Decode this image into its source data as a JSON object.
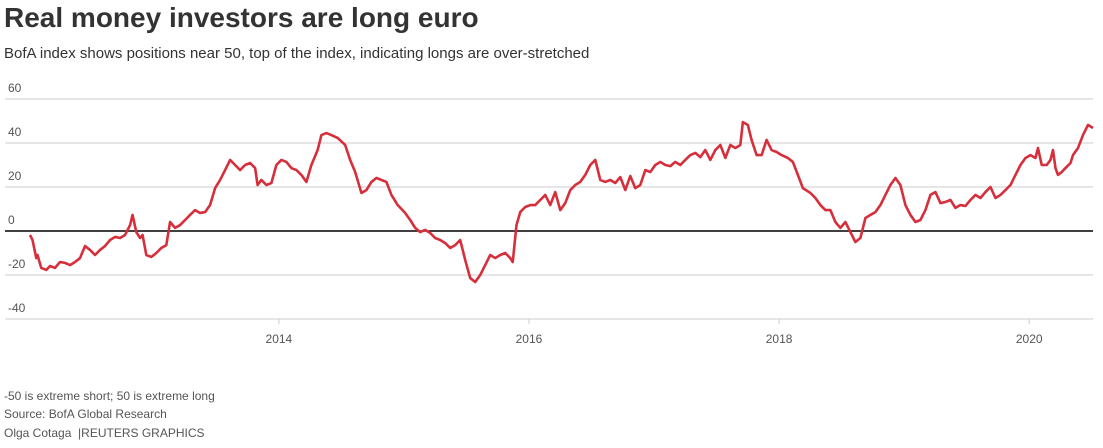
{
  "chart_data": {
    "type": "line",
    "title": "Real money investors are long euro",
    "subtitle": "BofA index shows positions near 50, top of the index, indicating longs are over-stretched",
    "footnote": "-50 is extreme short; 50 is extreme long",
    "source": "Source: BofA Global Research",
    "credit": "Olga Cotaga  |REUTERS GRAPHICS",
    "color": "#d62f3b",
    "grid": true,
    "xlim": [
      2011.81,
      2020.51
    ],
    "xticks": [
      2014,
      2016,
      2018,
      2020
    ],
    "ylim": [
      -40,
      60
    ],
    "yticks": [
      60,
      40,
      20,
      0,
      -20,
      -40
    ],
    "x": [
      2012.01,
      2012.03,
      2012.06,
      2012.07,
      2012.1,
      2012.14,
      2012.17,
      2012.21,
      2012.25,
      2012.29,
      2012.33,
      2012.37,
      2012.41,
      2012.45,
      2012.49,
      2012.53,
      2012.57,
      2012.61,
      2012.65,
      2012.69,
      2012.73,
      2012.77,
      2012.81,
      2012.83,
      2012.86,
      2012.89,
      2012.91,
      2012.94,
      2012.98,
      2013.02,
      2013.06,
      2013.1,
      2013.13,
      2013.17,
      2013.21,
      2013.25,
      2013.29,
      2013.33,
      2013.37,
      2013.41,
      2013.45,
      2013.49,
      2013.53,
      2013.57,
      2013.61,
      2013.65,
      2013.69,
      2013.73,
      2013.77,
      2013.81,
      2013.83,
      2013.86,
      2013.9,
      2013.94,
      2013.98,
      2014.02,
      2014.06,
      2014.1,
      2014.14,
      2014.18,
      2014.22,
      2014.26,
      2014.31,
      2014.34,
      2014.38,
      2014.42,
      2014.47,
      2014.53,
      2014.57,
      2014.61,
      2014.66,
      2014.7,
      2014.74,
      2014.78,
      2014.82,
      2014.86,
      2014.9,
      2014.95,
      2015.01,
      2015.05,
      2015.09,
      2015.13,
      2015.17,
      2015.21,
      2015.25,
      2015.29,
      2015.33,
      2015.37,
      2015.41,
      2015.45,
      2015.49,
      2015.53,
      2015.57,
      2015.61,
      2015.65,
      2015.69,
      2015.73,
      2015.77,
      2015.81,
      2015.85,
      2015.87,
      2015.9,
      2015.93,
      2015.97,
      2016.01,
      2016.05,
      2016.09,
      2016.13,
      2016.17,
      2016.21,
      2016.25,
      2016.29,
      2016.33,
      2016.37,
      2016.41,
      2016.45,
      2016.49,
      2016.53,
      2016.57,
      2016.61,
      2016.65,
      2016.69,
      2016.73,
      2016.77,
      2016.81,
      2016.85,
      2016.89,
      2016.93,
      2016.97,
      2017.01,
      2017.05,
      2017.09,
      2017.13,
      2017.17,
      2017.21,
      2017.25,
      2017.29,
      2017.33,
      2017.37,
      2017.41,
      2017.45,
      2017.49,
      2017.53,
      2017.57,
      2017.61,
      2017.65,
      2017.69,
      2017.71,
      2017.75,
      2017.78,
      2017.82,
      2017.86,
      2017.9,
      2017.94,
      2017.98,
      2018.02,
      2018.07,
      2018.11,
      2018.15,
      2018.19,
      2018.25,
      2018.29,
      2018.33,
      2018.37,
      2018.41,
      2018.45,
      2018.49,
      2018.53,
      2018.57,
      2018.61,
      2018.65,
      2018.69,
      2018.73,
      2018.77,
      2018.81,
      2018.85,
      2018.89,
      2018.93,
      2018.97,
      2019.01,
      2019.05,
      2019.09,
      2019.13,
      2019.17,
      2019.21,
      2019.25,
      2019.29,
      2019.33,
      2019.37,
      2019.41,
      2019.45,
      2019.49,
      2019.53,
      2019.57,
      2019.61,
      2019.65,
      2019.69,
      2019.73,
      2019.77,
      2019.81,
      2019.85,
      2019.89,
      2019.93,
      2019.97,
      2020.01,
      2020.05,
      2020.07,
      2020.1,
      2020.14,
      2020.17,
      2020.19,
      2020.21,
      2020.23,
      2020.26,
      2020.29,
      2020.33,
      2020.35,
      2020.39,
      2020.43,
      2020.47,
      2020.51
    ],
    "values": [
      -1.8,
      -4.1,
      -12.3,
      -10.9,
      -16.8,
      -17.7,
      -15.9,
      -16.8,
      -14.1,
      -14.5,
      -15.5,
      -14.1,
      -12.3,
      -6.8,
      -8.6,
      -10.9,
      -8.6,
      -6.8,
      -4.1,
      -2.7,
      -3.2,
      -1.8,
      2.7,
      7.3,
      -0.5,
      -3.2,
      -1.8,
      -10.9,
      -11.8,
      -10,
      -7.7,
      -6.4,
      4.1,
      1.4,
      2.7,
      5,
      7.3,
      9.5,
      8.2,
      8.6,
      11.8,
      19.5,
      23.2,
      27.7,
      32.3,
      30,
      27.7,
      30,
      30.9,
      28.6,
      20.9,
      23.2,
      20.9,
      21.8,
      30,
      32.3,
      31.4,
      28.6,
      27.7,
      25.5,
      22.3,
      30,
      36.8,
      43.6,
      44.5,
      43.6,
      42.3,
      39.1,
      32.3,
      26.8,
      17.3,
      18.6,
      22.3,
      24.1,
      23.2,
      22.3,
      16.4,
      11.8,
      8.2,
      5,
      1.4,
      -0.5,
      0.5,
      -0.9,
      -3.2,
      -4.1,
      -5.5,
      -7.7,
      -6.4,
      -4.1,
      -13.2,
      -21.4,
      -23.2,
      -20,
      -15.5,
      -10.9,
      -12.3,
      -10.9,
      -10,
      -12.3,
      -14.1,
      2.7,
      8.6,
      10.9,
      11.8,
      11.8,
      14.1,
      16.4,
      11.8,
      17.7,
      9.5,
      12.7,
      18.6,
      20.9,
      22.3,
      25.5,
      30,
      32.3,
      23.2,
      22.3,
      23.2,
      21.8,
      24.5,
      18.6,
      25,
      19.5,
      20.9,
      27.7,
      26.8,
      30,
      31.4,
      30,
      29.5,
      31.4,
      30,
      32.3,
      34.5,
      35.5,
      33.6,
      36.8,
      32.3,
      36.8,
      39.1,
      33.2,
      39.1,
      37.7,
      39.1,
      49.5,
      48.2,
      41.4,
      34.5,
      34.5,
      41.4,
      36.8,
      35.9,
      34.5,
      33.2,
      31.4,
      25.5,
      19.5,
      17.3,
      15,
      11.8,
      9.5,
      9.5,
      4.1,
      1.4,
      4.1,
      -0.5,
      -5,
      -3.2,
      5.9,
      7.3,
      8.6,
      11.8,
      16.4,
      20.9,
      24.1,
      20.9,
      11.8,
      7.3,
      4.1,
      5,
      9.5,
      16.4,
      17.7,
      12.7,
      13.2,
      14.1,
      10.5,
      11.8,
      11.4,
      14.1,
      16.4,
      15,
      17.7,
      20,
      15,
      16.4,
      18.6,
      20.9,
      25.5,
      30,
      33.2,
      34.5,
      33.2,
      37.7,
      30,
      30,
      32.3,
      36.8,
      28.6,
      25.5,
      26.8,
      28.6,
      30.9,
      34.5,
      37.7,
      43.6,
      48.2,
      46.8
    ]
  }
}
